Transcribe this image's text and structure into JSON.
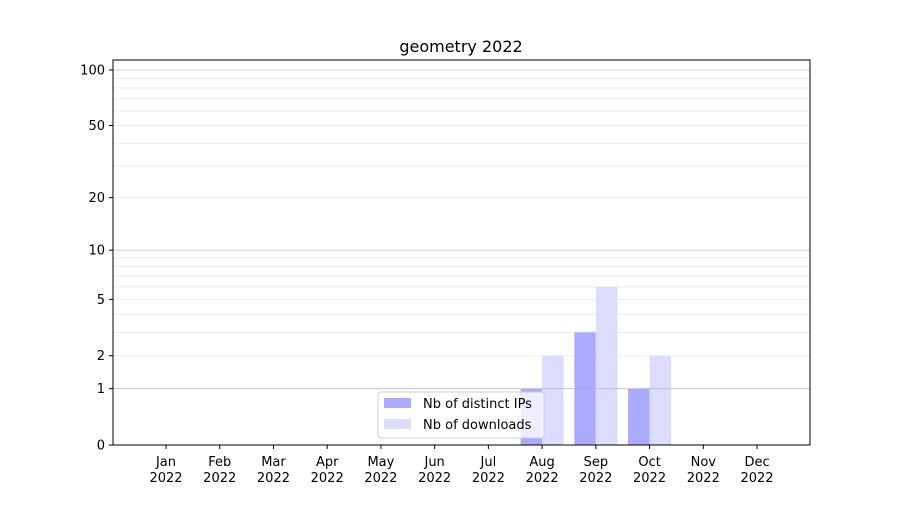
{
  "chart_data": {
    "type": "bar",
    "title": "geometry 2022",
    "xlabel": "",
    "ylabel": "",
    "yscale": "log10(y+1)",
    "ylim": [
      0,
      100
    ],
    "yticks": [
      0,
      1,
      2,
      5,
      10,
      20,
      50,
      100
    ],
    "grid": true,
    "legend_position": "lower-center",
    "categories": [
      "Jan\n2022",
      "Feb\n2022",
      "Mar\n2022",
      "Apr\n2022",
      "May\n2022",
      "Jun\n2022",
      "Jul\n2022",
      "Aug\n2022",
      "Sep\n2022",
      "Oct\n2022",
      "Nov\n2022",
      "Dec\n2022"
    ],
    "series": [
      {
        "name": "Nb of distinct IPs",
        "color": "#aaaaff",
        "values": [
          0,
          0,
          0,
          0,
          0,
          0,
          0,
          1,
          3,
          1,
          0,
          0
        ]
      },
      {
        "name": "Nb of downloads",
        "color": "#dcdcff",
        "values": [
          0,
          0,
          0,
          0,
          0,
          0,
          0,
          2,
          6,
          2,
          0,
          0
        ]
      }
    ]
  }
}
